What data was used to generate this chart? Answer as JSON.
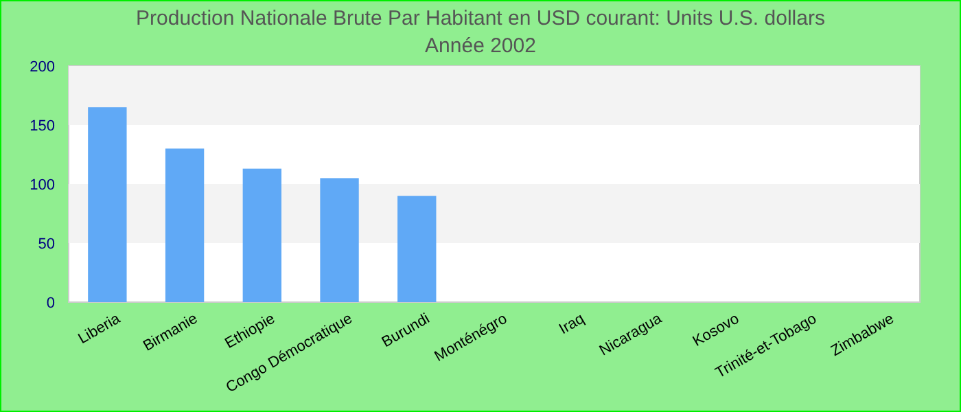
{
  "chart_data": {
    "type": "bar",
    "title": "Production Nationale Brute Par Habitant en USD courant: Units U.S. dollars",
    "subtitle": "Année 2002",
    "categories": [
      "Liberia",
      "Birmanie",
      "Ethiopie",
      "Congo Démocratique",
      "Burundi",
      "Monténégro",
      "Iraq",
      "Nicaragua",
      "Kosovo",
      "Trinité-et-Tobago",
      "Zimbabwe"
    ],
    "values": [
      165,
      130,
      113,
      105,
      90,
      null,
      null,
      null,
      null,
      null,
      null
    ],
    "color": "#60a9f6",
    "ylim": [
      0,
      200
    ],
    "yticks": [
      0,
      50,
      100,
      150,
      200
    ],
    "bands": [
      {
        "axis": "y",
        "from": 50,
        "to": 100,
        "color": "#f3f3f3"
      },
      {
        "axis": "y",
        "from": 150,
        "to": 200,
        "color": "#f3f3f3"
      }
    ]
  }
}
